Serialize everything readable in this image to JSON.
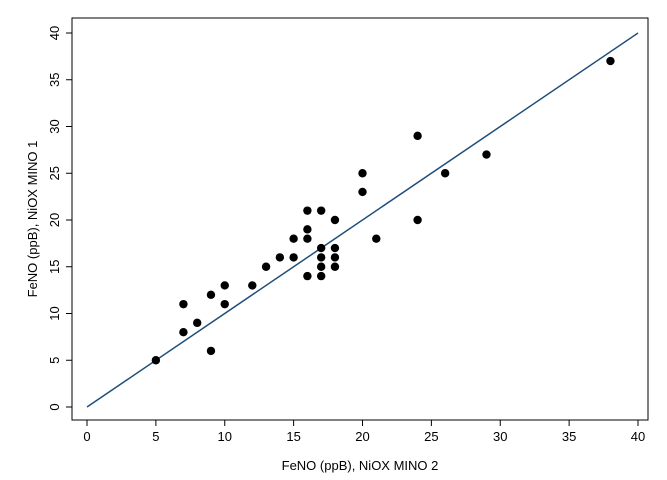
{
  "chart_data": {
    "type": "scatter",
    "xlabel": "FeNO (ppB), NiOX MINO 2",
    "ylabel": "FeNO (ppB), NiOX MINO 1",
    "xlim": [
      0,
      40
    ],
    "ylim": [
      0,
      40
    ],
    "x_ticks": [
      "0",
      "5",
      "10",
      "15",
      "20",
      "25",
      "30",
      "35",
      "40"
    ],
    "y_ticks": [
      "0",
      "5",
      "10",
      "15",
      "20",
      "25",
      "30",
      "35",
      "40"
    ],
    "grid": false,
    "legend": "none",
    "marker_color": "#000000",
    "line_color": "#1f4e79",
    "line_of_identity": {
      "x": [
        0,
        40
      ],
      "y": [
        0,
        40
      ]
    },
    "points": [
      {
        "x": 5,
        "y": 5
      },
      {
        "x": 7,
        "y": 8
      },
      {
        "x": 7,
        "y": 11
      },
      {
        "x": 8,
        "y": 9
      },
      {
        "x": 9,
        "y": 6
      },
      {
        "x": 9,
        "y": 12
      },
      {
        "x": 10,
        "y": 11
      },
      {
        "x": 10,
        "y": 13
      },
      {
        "x": 12,
        "y": 13
      },
      {
        "x": 13,
        "y": 15
      },
      {
        "x": 14,
        "y": 16
      },
      {
        "x": 15,
        "y": 16
      },
      {
        "x": 15,
        "y": 18
      },
      {
        "x": 16,
        "y": 14
      },
      {
        "x": 16,
        "y": 18
      },
      {
        "x": 16,
        "y": 19
      },
      {
        "x": 16,
        "y": 21
      },
      {
        "x": 17,
        "y": 14
      },
      {
        "x": 17,
        "y": 15
      },
      {
        "x": 17,
        "y": 16
      },
      {
        "x": 17,
        "y": 17
      },
      {
        "x": 17,
        "y": 21
      },
      {
        "x": 18,
        "y": 15
      },
      {
        "x": 18,
        "y": 16
      },
      {
        "x": 18,
        "y": 17
      },
      {
        "x": 18,
        "y": 20
      },
      {
        "x": 20,
        "y": 23
      },
      {
        "x": 20,
        "y": 25
      },
      {
        "x": 21,
        "y": 18
      },
      {
        "x": 24,
        "y": 20
      },
      {
        "x": 24,
        "y": 29
      },
      {
        "x": 26,
        "y": 25
      },
      {
        "x": 29,
        "y": 27
      },
      {
        "x": 38,
        "y": 37
      }
    ]
  }
}
